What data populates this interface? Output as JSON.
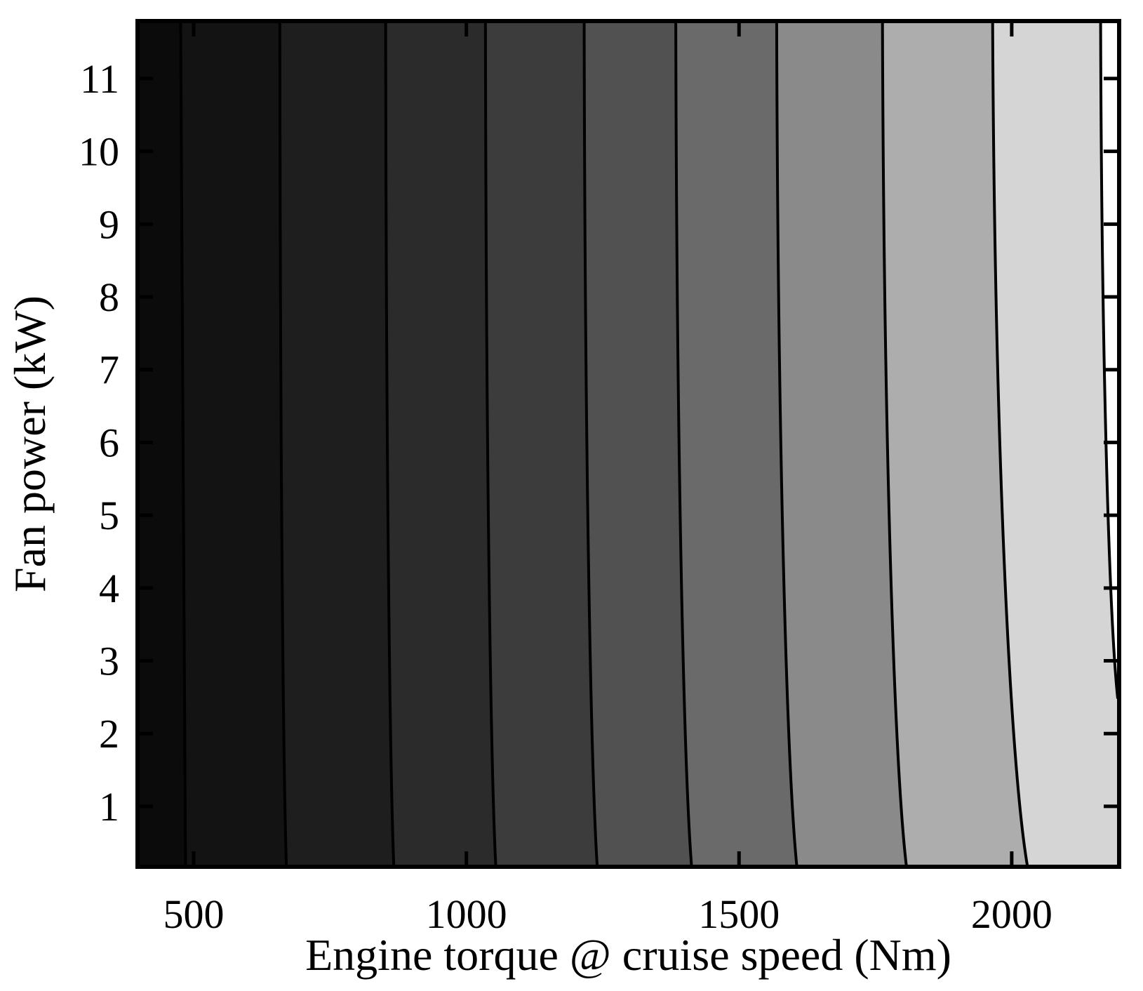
{
  "chart_data": {
    "type": "filled_contour",
    "title": "",
    "xlabel": "Engine torque @ cruise speed (Nm)",
    "ylabel": "Fan power (kW)",
    "xlim": [
      397,
      2197
    ],
    "ylim": [
      0.17,
      11.79
    ],
    "x_ticks": [
      "500",
      "1000",
      "1500",
      "2000"
    ],
    "x_tick_values": [
      500,
      1000,
      1500,
      2000
    ],
    "y_ticks": [
      "1",
      "2",
      "3",
      "4",
      "5",
      "6",
      "7",
      "8",
      "9",
      "10",
      "11"
    ],
    "y_tick_values": [
      1,
      2,
      3,
      4,
      5,
      6,
      7,
      8,
      9,
      10,
      11
    ],
    "grid": false,
    "legend": "none",
    "colormap": "gray",
    "background_color": "#ffffff",
    "border_color": "#000000",
    "contour_line_color": "#000000",
    "band_fill_colors": [
      "#0b0b0b",
      "#131313",
      "#1e1e1e",
      "#2b2b2b",
      "#3c3c3c",
      "#515151",
      "#6a6a6a",
      "#8a8a8a",
      "#adadad",
      "#d5d5d5",
      "#ffffff"
    ],
    "contour_lines": [
      {
        "x_top": 476,
        "x_bottom": 485
      },
      {
        "x_top": 658,
        "x_bottom": 670
      },
      {
        "x_top": 852,
        "x_bottom": 867
      },
      {
        "x_top": 1035,
        "x_bottom": 1054
      },
      {
        "x_top": 1216,
        "x_bottom": 1240
      },
      {
        "x_top": 1384,
        "x_bottom": 1413
      },
      {
        "x_top": 1569,
        "x_bottom": 1606
      },
      {
        "x_top": 1763,
        "x_bottom": 1807
      },
      {
        "x_top": 1965,
        "x_bottom": 2029
      },
      {
        "x_top": 2163,
        "x_bottom": 2194,
        "ends_on_right_edge_at_y": 2.48
      }
    ]
  }
}
